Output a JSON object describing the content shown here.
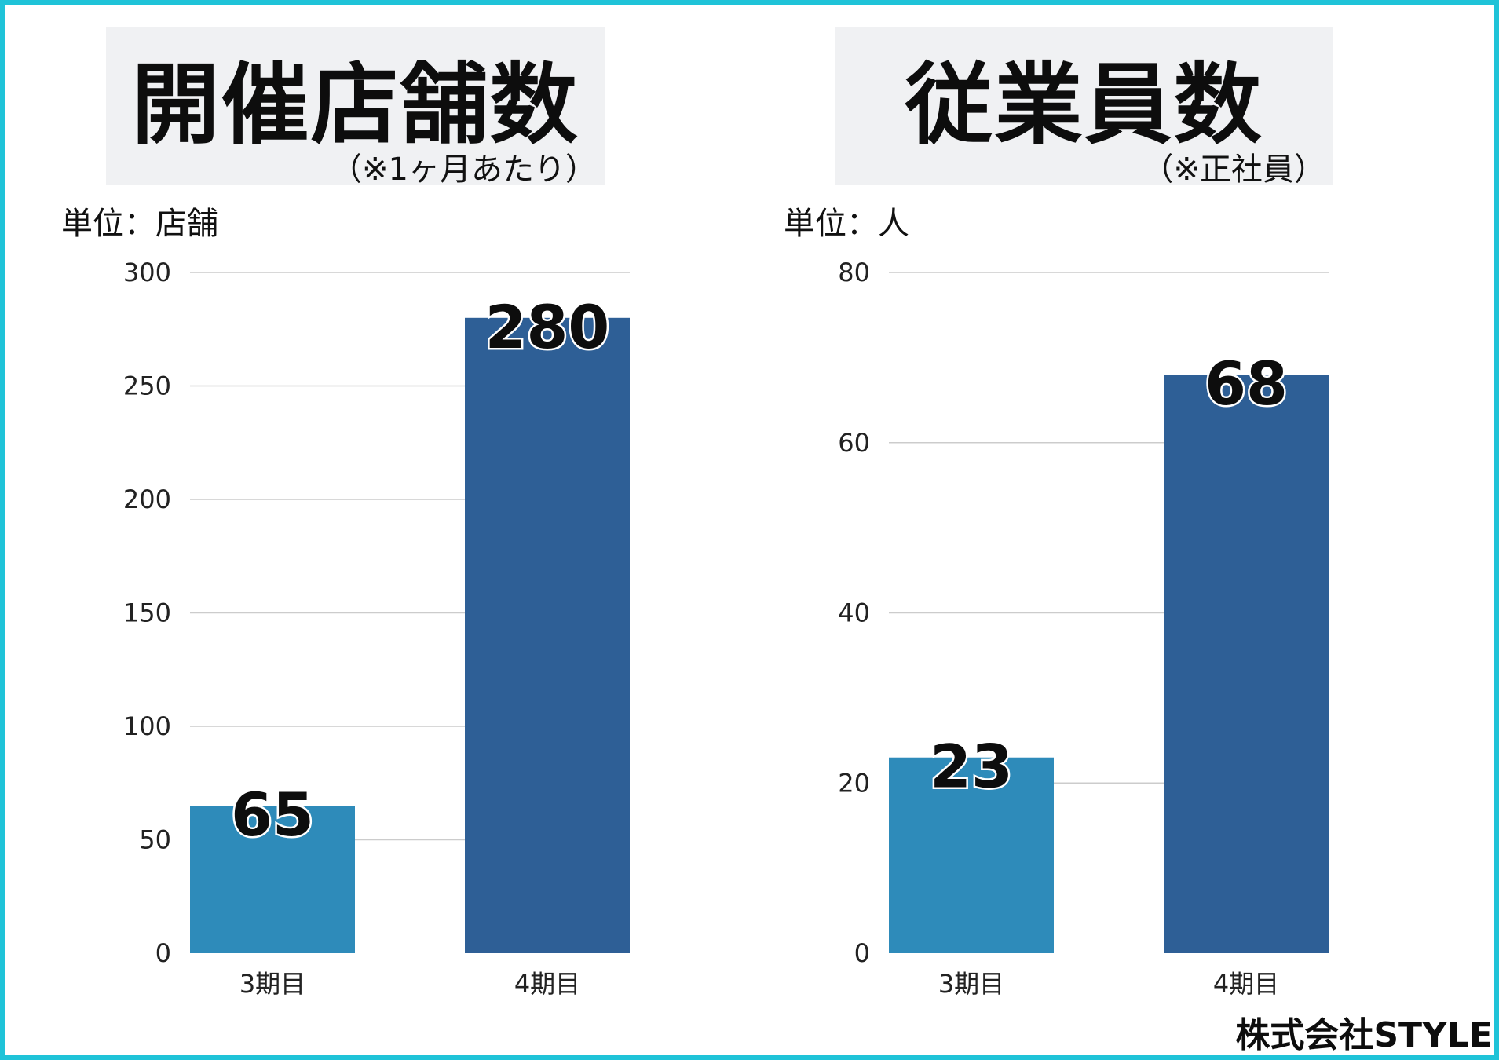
{
  "footer": "株式会社STYLE",
  "colors": {
    "border": "#1fc3d8",
    "bar_1": "#2e8bba",
    "bar_2": "#2e5f96",
    "grid": "#cccccc"
  },
  "chart_data": [
    {
      "type": "bar",
      "title": "開催店舗数",
      "subtitle": "（※1ヶ月あたり）",
      "unit_label": "単位：店舗",
      "categories": [
        "3期目",
        "4期目"
      ],
      "values": [
        65,
        280
      ],
      "data_labels": [
        "65",
        "280"
      ],
      "ylim": [
        0,
        300
      ],
      "yticks": [
        0,
        50,
        100,
        150,
        200,
        250,
        300
      ],
      "grid": true,
      "legend": "none"
    },
    {
      "type": "bar",
      "title": "従業員数",
      "subtitle": "（※正社員）",
      "unit_label": "単位：人",
      "categories": [
        "3期目",
        "4期目"
      ],
      "values": [
        23,
        68
      ],
      "data_labels": [
        "23",
        "68"
      ],
      "ylim": [
        0,
        80
      ],
      "yticks": [
        0,
        20,
        40,
        60,
        80
      ],
      "grid": true,
      "legend": "none"
    }
  ]
}
